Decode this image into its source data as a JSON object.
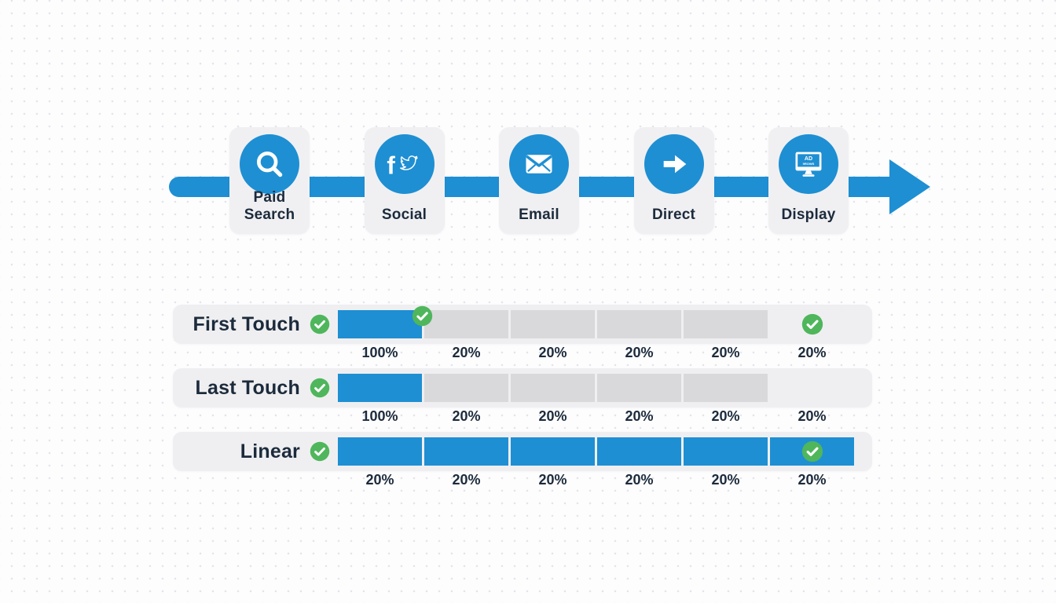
{
  "colors": {
    "blue": "#1E8FD3",
    "green": "#4FB65C",
    "gray_bar": "#D9D9DB",
    "panel_bg": "#F0F0F2",
    "text": "#1C2B3C"
  },
  "timeline": {
    "channels": [
      {
        "id": "paid-search",
        "icon": "search-icon",
        "label": "Paid Search"
      },
      {
        "id": "social",
        "icon": "facebook-twitter-icon",
        "label": "Social"
      },
      {
        "id": "email",
        "icon": "envelope-icon",
        "label": "Email"
      },
      {
        "id": "direct",
        "icon": "arrow-right-icon",
        "label": "Direct"
      },
      {
        "id": "display",
        "icon": "ad-monitor-icon",
        "label": "Display"
      }
    ],
    "display_screen_text": "AD",
    "display_screen_subtext": "9ROWS"
  },
  "models": [
    {
      "label": "First Touch",
      "label_checked": true,
      "slots": [
        {
          "kind": "bar-blue",
          "corner_badge": true
        },
        {
          "kind": "bar-gray"
        },
        {
          "kind": "bar-gray"
        },
        {
          "kind": "bar-gray"
        },
        {
          "kind": "bar-gray"
        },
        {
          "kind": "check"
        }
      ],
      "percents": [
        "100%",
        "20%",
        "20%",
        "20%",
        "20%",
        "20%"
      ]
    },
    {
      "label": "Last Touch",
      "label_checked": true,
      "slots": [
        {
          "kind": "bar-blue"
        },
        {
          "kind": "bar-gray"
        },
        {
          "kind": "bar-gray"
        },
        {
          "kind": "bar-gray"
        },
        {
          "kind": "bar-gray"
        },
        {
          "kind": "empty"
        }
      ],
      "percents": [
        "100%",
        "20%",
        "20%",
        "20%",
        "20%",
        "20%"
      ]
    },
    {
      "label": "Linear",
      "label_checked": true,
      "slots": [
        {
          "kind": "bar-blue"
        },
        {
          "kind": "bar-blue"
        },
        {
          "kind": "bar-blue"
        },
        {
          "kind": "bar-blue"
        },
        {
          "kind": "bar-blue"
        },
        {
          "kind": "bar-blue",
          "center_check": true
        }
      ],
      "percents": [
        "20%",
        "20%",
        "20%",
        "20%",
        "20%",
        "20%"
      ]
    }
  ]
}
